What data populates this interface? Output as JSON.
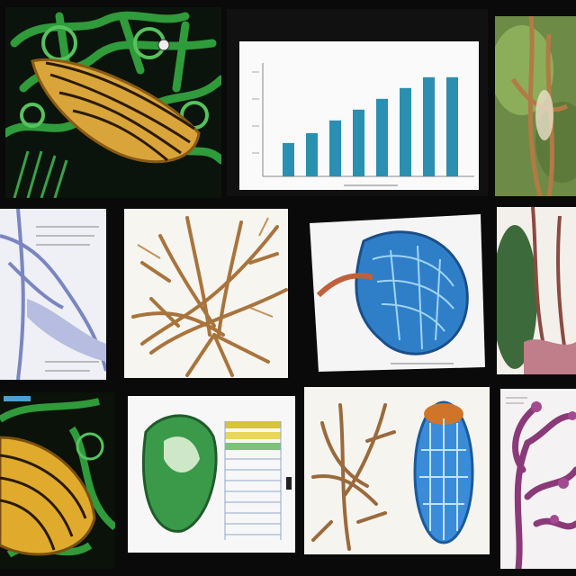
{
  "collage": {
    "background": "#0a0a0a",
    "tiles": [
      {
        "id": "leaf-green-net",
        "subject": "yellow-leaf-on-green-network"
      },
      {
        "id": "bar-chart",
        "subject": "blue-bar-chart"
      },
      {
        "id": "plant-stems-top-right",
        "subject": "green-plant-stems"
      },
      {
        "id": "vascular-diagram",
        "subject": "blue-vessel-diagram"
      },
      {
        "id": "root-branches",
        "subject": "brown-root-branches"
      },
      {
        "id": "blue-organ",
        "subject": "blue-kidney-organ"
      },
      {
        "id": "plant-right-mid",
        "subject": "pink-green-plant"
      },
      {
        "id": "leaf-bottom-left",
        "subject": "yellow-leaf-closeup"
      },
      {
        "id": "green-organ-chart",
        "subject": "green-organ-with-table"
      },
      {
        "id": "roots-and-seed",
        "subject": "brown-roots-blue-seed"
      },
      {
        "id": "purple-coral",
        "subject": "purple-branching-structure"
      }
    ]
  },
  "chart_data": {
    "type": "bar",
    "bar_color": "#2a8fb0",
    "values": [
      34,
      44,
      57,
      68,
      79,
      90,
      101,
      101
    ],
    "ylim": [
      0,
      110
    ]
  }
}
